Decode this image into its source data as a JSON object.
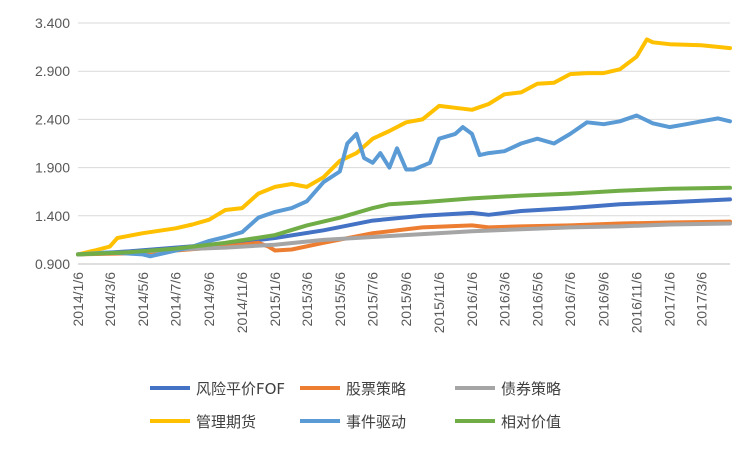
{
  "chart_data": {
    "type": "line",
    "title": "",
    "xlabel": "",
    "ylabel": "",
    "ylim": [
      0.9,
      3.4
    ],
    "yticks": [
      "0.900",
      "1.400",
      "1.900",
      "2.400",
      "2.900",
      "3.400"
    ],
    "x_ticks": [
      "2014/1/6",
      "2014/3/6",
      "2014/5/6",
      "2014/7/6",
      "2014/9/6",
      "2014/11/6",
      "2015/1/6",
      "2015/3/6",
      "2015/5/6",
      "2015/7/6",
      "2015/9/6",
      "2015/11/6",
      "2016/1/6",
      "2016/3/6",
      "2016/5/6",
      "2016/7/6",
      "2016/9/6",
      "2016/11/6",
      "2017/1/6",
      "2017/3/6"
    ],
    "x_range": [
      "2014/1/6",
      "2017/4/28"
    ],
    "grid": "horizontal",
    "legend": "bottom",
    "series": [
      {
        "name": "风险平价FOF",
        "color": "#4472C4",
        "points": [
          [
            "2014/1/6",
            1.0
          ],
          [
            "2014/4/6",
            1.03
          ],
          [
            "2014/7/6",
            1.07
          ],
          [
            "2014/10/6",
            1.11
          ],
          [
            "2015/1/6",
            1.17
          ],
          [
            "2015/4/6",
            1.25
          ],
          [
            "2015/7/6",
            1.35
          ],
          [
            "2015/10/6",
            1.4
          ],
          [
            "2016/1/6",
            1.43
          ],
          [
            "2016/2/6",
            1.41
          ],
          [
            "2016/4/6",
            1.45
          ],
          [
            "2016/7/6",
            1.48
          ],
          [
            "2016/10/6",
            1.52
          ],
          [
            "2017/1/6",
            1.54
          ],
          [
            "2017/4/28",
            1.57
          ]
        ]
      },
      {
        "name": "股票策略",
        "color": "#ED7D31",
        "points": [
          [
            "2014/1/6",
            1.0
          ],
          [
            "2014/4/6",
            1.01
          ],
          [
            "2014/7/6",
            1.04
          ],
          [
            "2014/10/6",
            1.08
          ],
          [
            "2014/12/6",
            1.12
          ],
          [
            "2014/12/25",
            1.08
          ],
          [
            "2015/1/6",
            1.04
          ],
          [
            "2015/2/6",
            1.05
          ],
          [
            "2015/4/6",
            1.12
          ],
          [
            "2015/7/6",
            1.22
          ],
          [
            "2015/10/6",
            1.28
          ],
          [
            "2016/1/6",
            1.3
          ],
          [
            "2016/2/6",
            1.28
          ],
          [
            "2016/4/6",
            1.29
          ],
          [
            "2016/7/6",
            1.3
          ],
          [
            "2016/10/6",
            1.32
          ],
          [
            "2017/1/6",
            1.33
          ],
          [
            "2017/4/28",
            1.34
          ]
        ]
      },
      {
        "name": "债券策略",
        "color": "#A5A5A5",
        "points": [
          [
            "2014/1/6",
            1.0
          ],
          [
            "2014/4/6",
            1.02
          ],
          [
            "2014/7/6",
            1.05
          ],
          [
            "2014/10/6",
            1.07
          ],
          [
            "2015/1/6",
            1.1
          ],
          [
            "2015/4/6",
            1.15
          ],
          [
            "2015/7/6",
            1.18
          ],
          [
            "2015/10/6",
            1.21
          ],
          [
            "2016/1/6",
            1.24
          ],
          [
            "2016/4/6",
            1.26
          ],
          [
            "2016/7/6",
            1.28
          ],
          [
            "2016/10/6",
            1.29
          ],
          [
            "2017/1/6",
            1.31
          ],
          [
            "2017/4/28",
            1.32
          ]
        ]
      },
      {
        "name": "管理期货",
        "color": "#FFC000",
        "points": [
          [
            "2014/1/6",
            1.0
          ],
          [
            "2014/2/6",
            1.04
          ],
          [
            "2014/3/6",
            1.08
          ],
          [
            "2014/3/20",
            1.17
          ],
          [
            "2014/5/6",
            1.22
          ],
          [
            "2014/7/6",
            1.27
          ],
          [
            "2014/8/6",
            1.31
          ],
          [
            "2014/9/6",
            1.36
          ],
          [
            "2014/10/6",
            1.46
          ],
          [
            "2014/11/6",
            1.48
          ],
          [
            "2014/12/6",
            1.63
          ],
          [
            "2015/1/6",
            1.7
          ],
          [
            "2015/2/6",
            1.73
          ],
          [
            "2015/3/6",
            1.7
          ],
          [
            "2015/4/6",
            1.8
          ],
          [
            "2015/5/6",
            1.97
          ],
          [
            "2015/6/6",
            2.05
          ],
          [
            "2015/7/6",
            2.2
          ],
          [
            "2015/8/6",
            2.28
          ],
          [
            "2015/9/6",
            2.37
          ],
          [
            "2015/10/6",
            2.4
          ],
          [
            "2015/11/6",
            2.54
          ],
          [
            "2015/12/6",
            2.52
          ],
          [
            "2016/1/6",
            2.5
          ],
          [
            "2016/2/6",
            2.56
          ],
          [
            "2016/3/6",
            2.66
          ],
          [
            "2016/4/6",
            2.68
          ],
          [
            "2016/5/6",
            2.77
          ],
          [
            "2016/6/6",
            2.78
          ],
          [
            "2016/7/6",
            2.87
          ],
          [
            "2016/8/6",
            2.88
          ],
          [
            "2016/9/6",
            2.88
          ],
          [
            "2016/10/6",
            2.92
          ],
          [
            "2016/11/6",
            3.05
          ],
          [
            "2016/11/25",
            3.23
          ],
          [
            "2016/12/6",
            3.2
          ],
          [
            "2017/1/6",
            3.18
          ],
          [
            "2017/3/6",
            3.17
          ],
          [
            "2017/4/28",
            3.14
          ]
        ]
      },
      {
        "name": "事件驱动",
        "color": "#5B9BD5",
        "points": [
          [
            "2014/1/6",
            1.0
          ],
          [
            "2014/3/6",
            1.02
          ],
          [
            "2014/5/6",
            1.0
          ],
          [
            "2014/5/20",
            0.98
          ],
          [
            "2014/7/6",
            1.04
          ],
          [
            "2014/8/6",
            1.08
          ],
          [
            "2014/9/6",
            1.14
          ],
          [
            "2014/10/6",
            1.18
          ],
          [
            "2014/11/6",
            1.23
          ],
          [
            "2014/12/6",
            1.38
          ],
          [
            "2015/1/6",
            1.44
          ],
          [
            "2015/2/6",
            1.48
          ],
          [
            "2015/3/6",
            1.55
          ],
          [
            "2015/4/6",
            1.75
          ],
          [
            "2015/5/6",
            1.86
          ],
          [
            "2015/5/20",
            2.15
          ],
          [
            "2015/6/6",
            2.25
          ],
          [
            "2015/6/20",
            2.0
          ],
          [
            "2015/7/6",
            1.95
          ],
          [
            "2015/7/20",
            2.05
          ],
          [
            "2015/8/6",
            1.9
          ],
          [
            "2015/8/20",
            2.1
          ],
          [
            "2015/9/6",
            1.88
          ],
          [
            "2015/9/20",
            1.88
          ],
          [
            "2015/10/20",
            1.95
          ],
          [
            "2015/11/6",
            2.2
          ],
          [
            "2015/12/6",
            2.25
          ],
          [
            "2015/12/20",
            2.32
          ],
          [
            "2016/1/6",
            2.25
          ],
          [
            "2016/1/20",
            2.03
          ],
          [
            "2016/2/6",
            2.05
          ],
          [
            "2016/3/6",
            2.07
          ],
          [
            "2016/4/6",
            2.15
          ],
          [
            "2016/5/6",
            2.2
          ],
          [
            "2016/6/6",
            2.15
          ],
          [
            "2016/7/6",
            2.25
          ],
          [
            "2016/8/6",
            2.37
          ],
          [
            "2016/9/6",
            2.35
          ],
          [
            "2016/10/6",
            2.38
          ],
          [
            "2016/11/6",
            2.44
          ],
          [
            "2016/12/6",
            2.36
          ],
          [
            "2017/1/6",
            2.32
          ],
          [
            "2017/2/6",
            2.35
          ],
          [
            "2017/3/6",
            2.38
          ],
          [
            "2017/4/6",
            2.41
          ],
          [
            "2017/4/28",
            2.38
          ]
        ]
      },
      {
        "name": "相对价值",
        "color": "#70AD47",
        "points": [
          [
            "2014/1/6",
            1.0
          ],
          [
            "2014/4/6",
            1.02
          ],
          [
            "2014/7/6",
            1.06
          ],
          [
            "2014/10/6",
            1.12
          ],
          [
            "2015/1/6",
            1.2
          ],
          [
            "2015/3/6",
            1.3
          ],
          [
            "2015/5/6",
            1.38
          ],
          [
            "2015/7/6",
            1.48
          ],
          [
            "2015/8/6",
            1.52
          ],
          [
            "2015/10/6",
            1.54
          ],
          [
            "2016/1/6",
            1.58
          ],
          [
            "2016/4/6",
            1.61
          ],
          [
            "2016/7/6",
            1.63
          ],
          [
            "2016/10/6",
            1.66
          ],
          [
            "2017/1/6",
            1.68
          ],
          [
            "2017/4/28",
            1.69
          ]
        ]
      }
    ]
  }
}
